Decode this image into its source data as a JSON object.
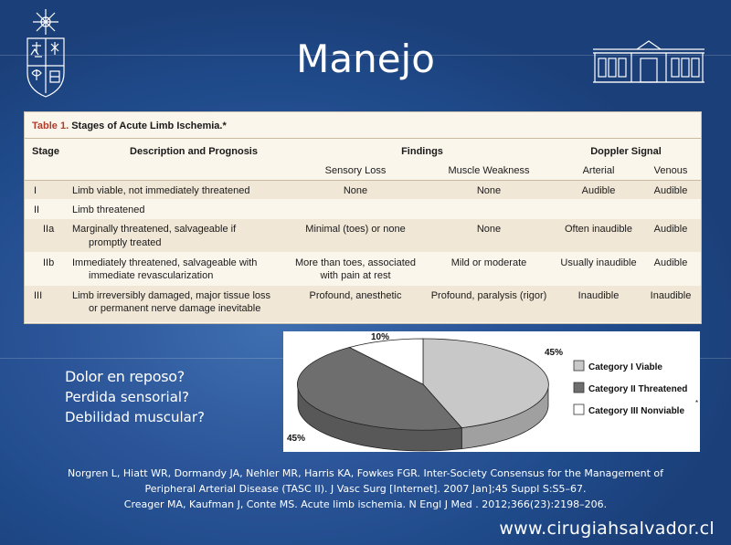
{
  "slide": {
    "title": "Manejo",
    "website": "www.cirugiahsalvador.cl"
  },
  "table": {
    "caption_number": "Table 1.",
    "caption_text": "Stages of Acute Limb Ischemia.*",
    "headers": {
      "stage": "Stage",
      "description": "Description and Prognosis",
      "findings": "Findings",
      "doppler": "Doppler Signal",
      "sensory": "Sensory Loss",
      "muscle": "Muscle Weakness",
      "arterial": "Arterial",
      "venous": "Venous"
    },
    "rows": [
      {
        "stage": "I",
        "desc1": "Limb viable, not immediately threatened",
        "desc2": "",
        "sensory1": "None",
        "sensory2": "",
        "muscle": "None",
        "arterial": "Audible",
        "venous": "Audible"
      },
      {
        "stage": "II",
        "desc1": "Limb threatened",
        "desc2": "",
        "sensory1": "",
        "sensory2": "",
        "muscle": "",
        "arterial": "",
        "venous": ""
      },
      {
        "stage": "IIa",
        "desc1": "Marginally threatened, salvageable if",
        "desc2": "promptly treated",
        "sensory1": "Minimal (toes) or none",
        "sensory2": "",
        "muscle": "None",
        "arterial": "Often inaudible",
        "venous": "Audible"
      },
      {
        "stage": "IIb",
        "desc1": "Immediately threatened, salvageable with",
        "desc2": "immediate revascularization",
        "sensory1": "More than toes, associated",
        "sensory2": "with pain at rest",
        "muscle": "Mild or moderate",
        "arterial": "Usually inaudible",
        "venous": "Audible"
      },
      {
        "stage": "III",
        "desc1": "Limb irreversibly damaged, major tissue loss",
        "desc2": "or permanent nerve damage inevitable",
        "sensory1": "Profound, anesthetic",
        "sensory2": "",
        "muscle": "Profound, paralysis (rigor)",
        "arterial": "Inaudible",
        "venous": "Inaudible"
      }
    ]
  },
  "chart_data": {
    "type": "pie",
    "categories": [
      "Category I Viable",
      "Category II Threatened",
      "Category III Nonviable"
    ],
    "values": [
      45,
      45,
      10
    ],
    "labels": [
      "45%",
      "45%",
      "10%"
    ],
    "colors": [
      "#c8c8c8",
      "#6e6e6e",
      "#ffffff"
    ],
    "legend_placement": "right",
    "legend_note": "*",
    "three_d": true
  },
  "questions": [
    "Dolor en reposo?",
    "Perdida sensorial?",
    "Debilidad muscular?"
  ],
  "references": [
    "Norgren L, Hiatt WR, Dormandy JA, Nehler MR, Harris KA, Fowkes FGR. Inter-Society  Consensus for the Management of",
    "Peripheral Arterial Disease (TASC II). J Vasc Surg [Internet]. 2007 Jan];45 Suppl S:S5–67.",
    "Creager MA, Kaufman J, Conte MS. Acute limb ischemia. N Engl J Med . 2012;366(23):2198–206."
  ]
}
